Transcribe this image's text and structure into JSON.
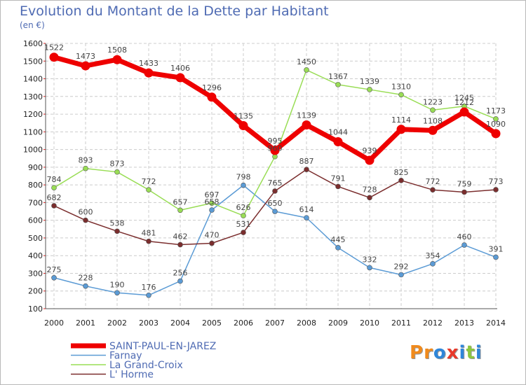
{
  "title": "Evolution du Montant de la Dette par Habitant",
  "subtitle": "(en €)",
  "logo": {
    "text": "Proxiti",
    "letters": [
      "P",
      "r",
      "o",
      "x",
      "i",
      "t",
      "i"
    ],
    "colors": [
      "#f08a1c",
      "#f08a1c",
      "#2f86d9",
      "#e8392a",
      "#2f86d9",
      "#8cc63f",
      "#2f86d9"
    ]
  },
  "chart_data": {
    "type": "line",
    "x": [
      "2000",
      "2001",
      "2002",
      "2003",
      "2004",
      "2005",
      "2006",
      "2007",
      "2008",
      "2009",
      "2010",
      "2011",
      "2012",
      "2013",
      "2014"
    ],
    "ylim": [
      100,
      1600
    ],
    "yticks": [
      100,
      200,
      300,
      400,
      500,
      600,
      700,
      800,
      900,
      1000,
      1100,
      1200,
      1300,
      1400,
      1500,
      1600
    ],
    "grid": true,
    "legend_position": "bottom-left",
    "series": [
      {
        "name": "SAINT-PAUL-EN-JAREZ",
        "color": "#ee0000",
        "highlight": true,
        "values": [
          1522,
          1473,
          1508,
          1433,
          1406,
          1296,
          1135,
          995,
          1139,
          1044,
          939,
          1114,
          1108,
          1212,
          1090
        ]
      },
      {
        "name": "Farnay",
        "color": "#5b9bd5",
        "values": [
          275,
          228,
          190,
          176,
          256,
          658,
          798,
          650,
          614,
          445,
          332,
          292,
          354,
          460,
          391
        ]
      },
      {
        "name": "La Grand-Croix",
        "color": "#99dd55",
        "values": [
          784,
          893,
          873,
          772,
          657,
          697,
          626,
          960,
          1450,
          1367,
          1339,
          1310,
          1223,
          1245,
          1173
        ]
      },
      {
        "name": "L' Horme",
        "color": "#7b2e2e",
        "values": [
          682,
          600,
          538,
          481,
          462,
          470,
          531,
          765,
          887,
          791,
          728,
          825,
          772,
          759,
          773
        ]
      }
    ]
  }
}
